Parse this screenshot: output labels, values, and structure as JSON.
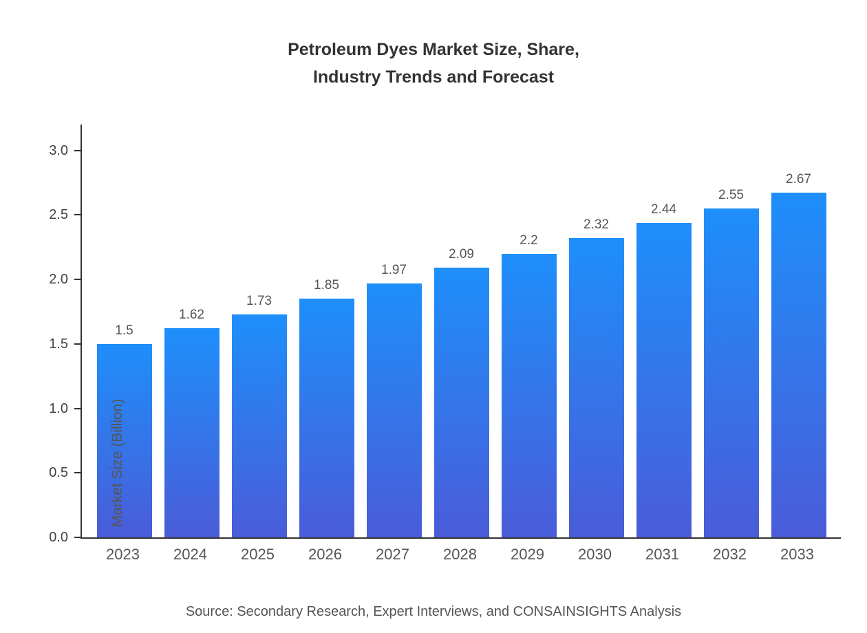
{
  "chart_data": {
    "type": "bar",
    "title": "Petroleum Dyes Market Size, Share,\nIndustry Trends and Forecast",
    "categories": [
      "2023",
      "2024",
      "2025",
      "2026",
      "2027",
      "2028",
      "2029",
      "2030",
      "2031",
      "2032",
      "2033"
    ],
    "values": [
      1.5,
      1.62,
      1.73,
      1.85,
      1.97,
      2.09,
      2.2,
      2.32,
      2.44,
      2.55,
      2.67
    ],
    "xlabel": "",
    "ylabel": "Market Size (Billion)",
    "ylim": [
      0,
      3.2
    ],
    "yticks": [
      0.0,
      0.5,
      1.0,
      1.5,
      2.0,
      2.5,
      3.0
    ],
    "grid": false,
    "legend": "none",
    "bar_color_top": "#1e8ffb",
    "bar_color_bottom": "#4a5cd8"
  },
  "source_note": "Source: Secondary Research, Expert Interviews, and CONSAINSIGHTS Analysis"
}
